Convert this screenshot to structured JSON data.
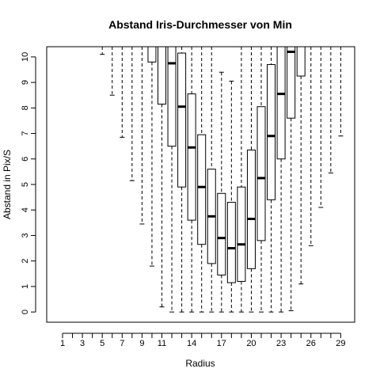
{
  "chart_data": {
    "type": "box",
    "title": "Abstand Iris-Durchmesser von Min",
    "xlabel": "Radius",
    "ylabel": "Abstand in Pix/S",
    "ylim": [
      -0.4,
      10.4
    ],
    "yticks": [
      0,
      1,
      2,
      3,
      4,
      5,
      6,
      7,
      8,
      9,
      10
    ],
    "xticks_labels": [
      "1",
      "3",
      "5",
      "7",
      "9",
      "11",
      "14",
      "17",
      "20",
      "23",
      "26",
      "29"
    ],
    "categories": [
      "1",
      "2",
      "3",
      "4",
      "5",
      "6",
      "7",
      "8",
      "9",
      "10",
      "11",
      "12",
      "13",
      "14",
      "15",
      "16",
      "17",
      "18",
      "19",
      "20",
      "21",
      "22",
      "23",
      "24",
      "25",
      "26",
      "27",
      "28",
      "29"
    ],
    "boxes": [
      {
        "category": "1",
        "min": null,
        "q1": null,
        "median": null,
        "q3": null,
        "max": null
      },
      {
        "category": "2",
        "min": null,
        "q1": null,
        "median": null,
        "q3": null,
        "max": null
      },
      {
        "category": "3",
        "min": null,
        "q1": null,
        "median": null,
        "q3": null,
        "max": null
      },
      {
        "category": "4",
        "min": null,
        "q1": null,
        "median": null,
        "q3": null,
        "max": null
      },
      {
        "category": "5",
        "min": 10.1,
        "q1": null,
        "median": null,
        "q3": null,
        "max": 10.4
      },
      {
        "category": "6",
        "min": 8.5,
        "q1": null,
        "median": null,
        "q3": null,
        "max": 10.4
      },
      {
        "category": "7",
        "min": 6.85,
        "q1": null,
        "median": null,
        "q3": null,
        "max": 10.4
      },
      {
        "category": "8",
        "min": 5.15,
        "q1": null,
        "median": null,
        "q3": null,
        "max": 10.4
      },
      {
        "category": "9",
        "min": 3.45,
        "q1": null,
        "median": null,
        "q3": null,
        "max": 10.4
      },
      {
        "category": "10",
        "min": 1.8,
        "q1": 9.8,
        "median": null,
        "q3": 10.4,
        "max": 10.4
      },
      {
        "category": "11",
        "min": 0.2,
        "q1": 8.15,
        "median": null,
        "q3": 10.4,
        "max": 10.4
      },
      {
        "category": "12",
        "min": 0.0,
        "q1": 6.5,
        "median": 9.75,
        "q3": 10.4,
        "max": 10.4
      },
      {
        "category": "13",
        "min": 0.0,
        "q1": 4.9,
        "median": 8.05,
        "q3": 10.15,
        "max": 10.4
      },
      {
        "category": "14",
        "min": 0.0,
        "q1": 3.6,
        "median": 6.45,
        "q3": 8.55,
        "max": 10.4
      },
      {
        "category": "15",
        "min": 0.0,
        "q1": 2.65,
        "median": 4.9,
        "q3": 6.95,
        "max": 10.4
      },
      {
        "category": "16",
        "min": 0.0,
        "q1": 1.9,
        "median": 3.75,
        "q3": 5.6,
        "max": 10.4
      },
      {
        "category": "17",
        "min": 0.0,
        "q1": 1.45,
        "median": 2.9,
        "q3": 4.65,
        "max": 9.4
      },
      {
        "category": "18",
        "min": 0.0,
        "q1": 1.15,
        "median": 2.5,
        "q3": 4.3,
        "max": 9.05
      },
      {
        "category": "19",
        "min": 0.0,
        "q1": 1.2,
        "median": 2.65,
        "q3": 4.9,
        "max": 10.4
      },
      {
        "category": "20",
        "min": 0.0,
        "q1": 1.7,
        "median": 3.65,
        "q3": 6.35,
        "max": 10.4
      },
      {
        "category": "21",
        "min": 0.0,
        "q1": 2.8,
        "median": 5.25,
        "q3": 8.05,
        "max": 10.4
      },
      {
        "category": "22",
        "min": 0.0,
        "q1": 4.4,
        "median": 6.9,
        "q3": 9.7,
        "max": 10.4
      },
      {
        "category": "23",
        "min": 0.0,
        "q1": 6.0,
        "median": 8.55,
        "q3": 10.4,
        "max": 10.4
      },
      {
        "category": "24",
        "min": 0.05,
        "q1": 7.6,
        "median": 10.2,
        "q3": 10.4,
        "max": 10.4
      },
      {
        "category": "25",
        "min": 1.1,
        "q1": 9.25,
        "median": null,
        "q3": 10.4,
        "max": 10.4
      },
      {
        "category": "26",
        "min": 2.6,
        "q1": null,
        "median": null,
        "q3": null,
        "max": 10.4
      },
      {
        "category": "27",
        "min": 4.1,
        "q1": null,
        "median": null,
        "q3": null,
        "max": 10.4
      },
      {
        "category": "28",
        "min": 5.45,
        "q1": null,
        "median": null,
        "q3": null,
        "max": 10.4
      },
      {
        "category": "29",
        "min": 6.9,
        "q1": null,
        "median": null,
        "q3": null,
        "max": 10.4
      }
    ],
    "grid": false,
    "legend": "none",
    "colors": {
      "box_fill": "#ffffff",
      "stroke": "#000000"
    }
  }
}
